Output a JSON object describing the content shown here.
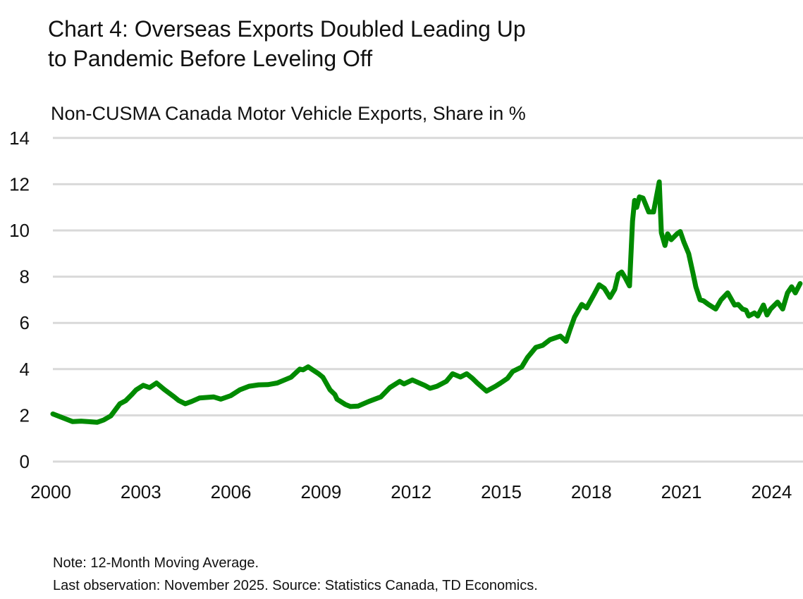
{
  "chart_data": {
    "type": "line",
    "title_lines": [
      "Chart 4: Overseas Exports Doubled Leading Up",
      "to Pandemic Before Leveling Off"
    ],
    "subtitle": "Non-CUSMA Canada Motor Vehicle Exports, Share in %",
    "xlabel": "",
    "ylabel": "",
    "ylim": [
      0,
      14
    ],
    "xlim": [
      2000,
      2025
    ],
    "y_ticks": [
      "0",
      "2",
      "4",
      "6",
      "8",
      "10",
      "12",
      "14"
    ],
    "x_ticks": [
      "2000",
      "2003",
      "2006",
      "2009",
      "2012",
      "2015",
      "2018",
      "2021",
      "2024"
    ],
    "grid": "horizontal",
    "line_color": "#008a00",
    "grid_color": "#d9d9d9",
    "series": [
      {
        "x": [
          2000.07,
          2000.73,
          2001.01,
          2001.55,
          2001.76,
          2002.0,
          2002.3,
          2002.49,
          2002.7,
          2002.84,
          2003.08,
          2003.29,
          2003.52,
          2003.78,
          2004.11,
          2004.25,
          2004.48,
          2004.69,
          2004.95,
          2005.42,
          2005.66,
          2005.99,
          2006.29,
          2006.6,
          2006.92,
          2007.23,
          2007.54,
          2008.0,
          2008.29,
          2008.4,
          2008.57,
          2008.71,
          2008.92,
          2009.06,
          2009.3,
          2009.46,
          2009.53,
          2009.81,
          2009.98,
          2010.23,
          2010.59,
          2010.99,
          2011.29,
          2011.62,
          2011.76,
          2012.04,
          2012.46,
          2012.63,
          2012.86,
          2013.17,
          2013.38,
          2013.64,
          2013.85,
          2014.04,
          2014.2,
          2014.51,
          2014.81,
          2014.98,
          2015.21,
          2015.38,
          2015.68,
          2015.87,
          2016.15,
          2016.38,
          2016.62,
          2016.97,
          2017.16,
          2017.28,
          2017.44,
          2017.68,
          2017.84,
          2018.1,
          2018.26,
          2018.43,
          2018.62,
          2018.78,
          2018.9,
          2019.01,
          2019.13,
          2019.27,
          2019.37,
          2019.44,
          2019.51,
          2019.6,
          2019.72,
          2019.91,
          2020.07,
          2020.26,
          2020.33,
          2020.45,
          2020.54,
          2020.66,
          2020.85,
          2020.96,
          2021.08,
          2021.24,
          2021.38,
          2021.48,
          2021.62,
          2021.74,
          2021.9,
          2022.14,
          2022.32,
          2022.54,
          2022.77,
          2022.89,
          2023.03,
          2023.15,
          2023.24,
          2023.43,
          2023.54,
          2023.73,
          2023.85,
          2023.97,
          2024.2,
          2024.37,
          2024.53,
          2024.67,
          2024.79,
          2024.95
        ],
        "values": [
          2.06,
          1.73,
          1.75,
          1.7,
          1.8,
          1.98,
          2.5,
          2.63,
          2.9,
          3.1,
          3.3,
          3.2,
          3.4,
          3.12,
          2.8,
          2.65,
          2.5,
          2.6,
          2.75,
          2.8,
          2.7,
          2.85,
          3.1,
          3.26,
          3.32,
          3.33,
          3.4,
          3.65,
          4.0,
          3.97,
          4.1,
          3.98,
          3.8,
          3.65,
          3.1,
          2.9,
          2.7,
          2.47,
          2.38,
          2.4,
          2.6,
          2.8,
          3.2,
          3.47,
          3.36,
          3.53,
          3.29,
          3.17,
          3.26,
          3.47,
          3.8,
          3.66,
          3.8,
          3.6,
          3.4,
          3.05,
          3.26,
          3.4,
          3.6,
          3.9,
          4.09,
          4.5,
          4.94,
          5.03,
          5.27,
          5.43,
          5.2,
          5.67,
          6.25,
          6.8,
          6.65,
          7.26,
          7.65,
          7.5,
          7.1,
          7.45,
          8.1,
          8.2,
          7.95,
          7.6,
          10.4,
          11.3,
          11.0,
          11.45,
          11.4,
          10.8,
          10.8,
          12.1,
          9.9,
          9.35,
          9.85,
          9.6,
          9.85,
          9.95,
          9.5,
          9.0,
          8.17,
          7.56,
          7.0,
          6.95,
          6.8,
          6.6,
          7.0,
          7.3,
          6.77,
          6.8,
          6.6,
          6.55,
          6.3,
          6.43,
          6.3,
          6.77,
          6.34,
          6.6,
          6.9,
          6.6,
          7.3,
          7.56,
          7.3,
          7.7
        ]
      }
    ]
  },
  "notes": [
    "Note: 12-Month Moving Average.",
    "Last observation: November 2025. Source: Statistics Canada, TD Economics."
  ]
}
